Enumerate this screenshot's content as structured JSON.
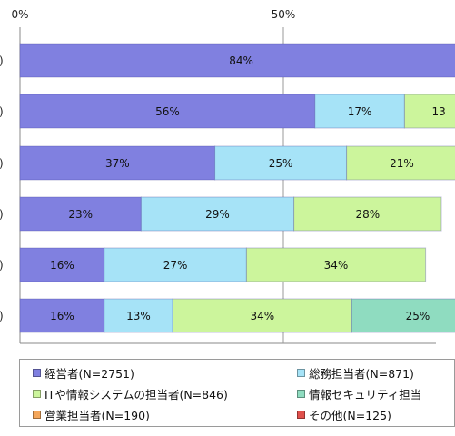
{
  "chart_data": {
    "type": "bar",
    "orientation": "horizontal",
    "stacked": true,
    "percent": true,
    "x_ticks": [
      "0%",
      "50%"
    ],
    "xlim": [
      0,
      100
    ],
    "grid": true,
    "row_labels": [
      ")",
      ")",
      ")",
      ")",
      ")",
      ")"
    ],
    "series": [
      {
        "name": "経営者(N=2751)",
        "color": "#8080e0",
        "values": [
          84,
          56,
          37,
          23,
          16,
          16
        ]
      },
      {
        "name": "総務担当者(N=871)",
        "color": "#a6e3f7",
        "values": [
          null,
          17,
          25,
          29,
          27,
          13
        ]
      },
      {
        "name": "ITや情報システムの担当者(N=846)",
        "color": "#ccf59c",
        "values": [
          null,
          13,
          21,
          28,
          34,
          34
        ]
      },
      {
        "name": "情報セキュリティ担当",
        "color": "#8fdcc0",
        "values": [
          null,
          null,
          null,
          null,
          null,
          25
        ]
      },
      {
        "name": "営業担当者(N=190)",
        "color": "#f4a65a",
        "values": [
          null,
          null,
          null,
          null,
          null,
          null
        ]
      },
      {
        "name": "その他(N=125)",
        "color": "#e0504c",
        "values": [
          null,
          null,
          null,
          null,
          null,
          null
        ]
      }
    ],
    "value_labels": [
      [
        "84%",
        null,
        null,
        null
      ],
      [
        "56%",
        "17%",
        "13",
        null
      ],
      [
        "37%",
        "25%",
        "21%",
        null
      ],
      [
        "23%",
        "29%",
        "28%",
        null
      ],
      [
        "16%",
        "27%",
        "34%",
        null
      ],
      [
        "16%",
        "13%",
        "34%",
        "25%"
      ]
    ],
    "legend_position": "bottom"
  }
}
